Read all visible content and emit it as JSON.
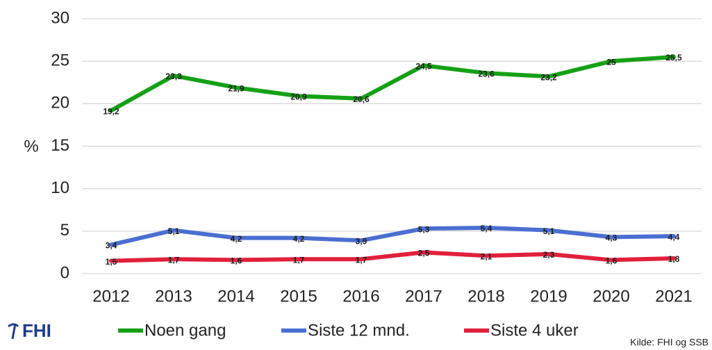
{
  "chart_data": {
    "type": "line",
    "y_label": "%",
    "source": "Kilde: FHI og SSB",
    "logo": "FHI",
    "categories": [
      "2012",
      "2013",
      "2014",
      "2015",
      "2016",
      "2017",
      "2018",
      "2019",
      "2020",
      "2021"
    ],
    "series": [
      {
        "name": "Noen gang",
        "color": "#16a016",
        "values": [
          19.2,
          23.3,
          21.9,
          20.9,
          20.6,
          24.5,
          23.6,
          23.2,
          25,
          25.5
        ],
        "value_labels": [
          "19,2",
          "23,3",
          "21,9",
          "20,9",
          "20,6",
          "24,5",
          "23,6",
          "23,2",
          "25",
          "25,5"
        ]
      },
      {
        "name": "Siste 12 mnd.",
        "color": "#4a6fd1",
        "values": [
          3.4,
          5.1,
          4.2,
          4.2,
          3.9,
          5.3,
          5.4,
          5.1,
          4.3,
          4.4
        ],
        "value_labels": [
          "3,4",
          "5,1",
          "4,2",
          "4,2",
          "3,9",
          "5,3",
          "5,4",
          "5,1",
          "4,3",
          "4,4"
        ]
      },
      {
        "name": "Siste 4 uker",
        "color": "#e0203c",
        "values": [
          1.5,
          1.7,
          1.6,
          1.7,
          1.7,
          2.5,
          2.1,
          2.3,
          1.6,
          1.8
        ],
        "value_labels": [
          "1,5",
          "1,7",
          "1,6",
          "1,7",
          "1,7",
          "2,5",
          "2,1",
          "2,3",
          "1,6",
          "1,8"
        ]
      }
    ],
    "ylim": [
      0,
      30
    ],
    "yticks": [
      0,
      5,
      10,
      15,
      20,
      25,
      30
    ],
    "grid": true,
    "legend": "bottom"
  }
}
